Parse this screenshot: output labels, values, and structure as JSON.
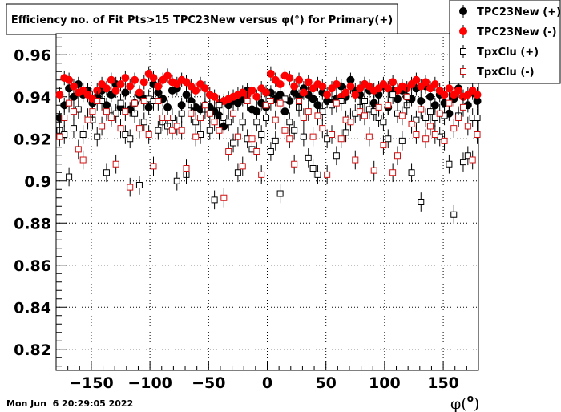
{
  "chart_data": {
    "type": "scatter",
    "title": "Efficiency no. of Fit Pts>15 TPC23New versus φ(°) for Primary(+)",
    "xlabel": "φ(°)",
    "xlabel_base": "φ(",
    "xlabel_sup": "o",
    "xlabel_end": ")",
    "ylabel": "",
    "xlim": [
      -180,
      180
    ],
    "ylim": [
      0.81,
      0.97
    ],
    "x_ticks": [
      -150,
      -100,
      -50,
      0,
      50,
      100,
      150
    ],
    "x_tick_labels": [
      "−150",
      "−100",
      "−50",
      "0",
      "50",
      "100",
      "150"
    ],
    "y_ticks": [
      0.82,
      0.84,
      0.86,
      0.88,
      0.9,
      0.92,
      0.94,
      0.96
    ],
    "y_tick_labels": [
      "0.82",
      "0.84",
      "0.86",
      "0.88",
      "0.9",
      "0.92",
      "0.94",
      "0.96"
    ],
    "grid": true,
    "legend_position": "top-right",
    "x": [
      -177,
      -173,
      -169,
      -165,
      -161,
      -157,
      -153,
      -149,
      -145,
      -141,
      -137,
      -133,
      -129,
      -125,
      -121,
      -117,
      -113,
      -109,
      -105,
      -101,
      -97,
      -93,
      -89,
      -85,
      -81,
      -77,
      -73,
      -69,
      -65,
      -61,
      -57,
      -53,
      -49,
      -45,
      -41,
      -37,
      -33,
      -29,
      -25,
      -21,
      -17,
      -13,
      -9,
      -5,
      -1,
      3,
      7,
      11,
      15,
      19,
      23,
      27,
      31,
      35,
      39,
      43,
      47,
      51,
      55,
      59,
      63,
      67,
      71,
      75,
      79,
      83,
      87,
      91,
      95,
      99,
      103,
      107,
      111,
      115,
      119,
      123,
      127,
      131,
      135,
      139,
      143,
      147,
      151,
      155,
      159,
      163,
      167,
      171,
      175,
      179
    ],
    "series": [
      {
        "name": "TPC23New (+)",
        "marker": "filled-circle",
        "color": "#000000",
        "values": [
          0.93,
          0.936,
          0.944,
          0.94,
          0.946,
          0.941,
          0.943,
          0.937,
          0.94,
          0.943,
          0.936,
          0.941,
          0.946,
          0.935,
          0.942,
          0.934,
          0.937,
          0.941,
          0.939,
          0.935,
          0.946,
          0.942,
          0.939,
          0.935,
          0.943,
          0.944,
          0.936,
          0.941,
          0.938,
          0.935,
          0.934,
          0.936,
          0.935,
          0.933,
          0.931,
          0.926,
          0.936,
          0.938,
          0.937,
          0.939,
          0.943,
          0.934,
          0.933,
          0.937,
          0.935,
          0.942,
          0.939,
          0.941,
          0.933,
          0.938,
          0.942,
          0.94,
          0.944,
          0.941,
          0.939,
          0.936,
          0.942,
          0.938,
          0.937,
          0.939,
          0.945,
          0.94,
          0.948,
          0.943,
          0.941,
          0.946,
          0.943,
          0.937,
          0.941,
          0.945,
          0.935,
          0.943,
          0.939,
          0.943,
          0.94,
          0.939,
          0.944,
          0.938,
          0.945,
          0.94,
          0.936,
          0.941,
          0.937,
          0.932,
          0.939,
          0.944,
          0.94,
          0.936,
          0.942,
          0.938
        ]
      },
      {
        "name": "TPC23New (-)",
        "marker": "filled-circle",
        "color": "#ff0000",
        "values": [
          0.941,
          0.949,
          0.948,
          0.945,
          0.942,
          0.943,
          0.941,
          0.939,
          0.943,
          0.946,
          0.944,
          0.948,
          0.943,
          0.946,
          0.949,
          0.945,
          0.948,
          0.942,
          0.947,
          0.951,
          0.949,
          0.945,
          0.948,
          0.95,
          0.947,
          0.946,
          0.948,
          0.947,
          0.945,
          0.943,
          0.946,
          0.944,
          0.941,
          0.94,
          0.937,
          0.938,
          0.939,
          0.94,
          0.941,
          0.942,
          0.941,
          0.943,
          0.94,
          0.944,
          0.942,
          0.951,
          0.948,
          0.946,
          0.95,
          0.949,
          0.945,
          0.948,
          0.942,
          0.947,
          0.944,
          0.946,
          0.945,
          0.941,
          0.944,
          0.946,
          0.94,
          0.942,
          0.945,
          0.941,
          0.944,
          0.946,
          0.945,
          0.943,
          0.944,
          0.946,
          0.944,
          0.947,
          0.943,
          0.945,
          0.944,
          0.946,
          0.948,
          0.945,
          0.947,
          0.944,
          0.946,
          0.943,
          0.941,
          0.944,
          0.941,
          0.943,
          0.94,
          0.941,
          0.943,
          0.941
        ]
      },
      {
        "name": "TpxClu (+)",
        "marker": "open-square",
        "color": "#000000",
        "values": [
          0.924,
          0.922,
          0.902,
          0.925,
          0.934,
          0.922,
          0.93,
          0.929,
          0.921,
          0.938,
          0.904,
          0.931,
          0.932,
          0.937,
          0.922,
          0.92,
          0.932,
          0.898,
          0.928,
          0.939,
          0.938,
          0.924,
          0.928,
          0.926,
          0.93,
          0.9,
          0.932,
          0.903,
          0.936,
          0.928,
          0.922,
          0.934,
          0.924,
          0.891,
          0.936,
          0.93,
          0.928,
          0.918,
          0.904,
          0.928,
          0.92,
          0.915,
          0.928,
          0.922,
          0.93,
          0.914,
          0.919,
          0.894,
          0.939,
          0.928,
          0.924,
          0.935,
          0.921,
          0.911,
          0.906,
          0.903,
          0.933,
          0.92,
          0.936,
          0.912,
          0.938,
          0.923,
          0.93,
          0.932,
          0.935,
          0.938,
          0.934,
          0.933,
          0.93,
          0.928,
          0.92,
          0.941,
          0.932,
          0.919,
          0.936,
          0.904,
          0.929,
          0.89,
          0.93,
          0.933,
          0.93,
          0.921,
          0.931,
          0.908,
          0.884,
          0.931,
          0.909,
          0.912,
          0.93,
          0.93
        ]
      },
      {
        "name": "TpxClu (-)",
        "marker": "open-square",
        "color": "#d01010",
        "values": [
          0.921,
          0.93,
          0.937,
          0.933,
          0.915,
          0.91,
          0.929,
          0.933,
          0.938,
          0.926,
          0.933,
          0.93,
          0.908,
          0.925,
          0.933,
          0.897,
          0.937,
          0.925,
          0.938,
          0.922,
          0.907,
          0.938,
          0.93,
          0.93,
          0.924,
          0.926,
          0.924,
          0.906,
          0.932,
          0.921,
          0.93,
          0.936,
          0.932,
          0.928,
          0.924,
          0.892,
          0.914,
          0.932,
          0.921,
          0.907,
          0.938,
          0.92,
          0.914,
          0.903,
          0.936,
          0.938,
          0.929,
          0.937,
          0.924,
          0.92,
          0.908,
          0.938,
          0.93,
          0.933,
          0.921,
          0.931,
          0.925,
          0.903,
          0.922,
          0.937,
          0.92,
          0.929,
          0.928,
          0.91,
          0.933,
          0.931,
          0.921,
          0.905,
          0.935,
          0.917,
          0.936,
          0.904,
          0.912,
          0.931,
          0.94,
          0.927,
          0.922,
          0.934,
          0.92,
          0.926,
          0.922,
          0.932,
          0.919,
          0.937,
          0.925,
          0.93,
          0.935,
          0.926,
          0.91,
          0.922
        ]
      }
    ]
  },
  "footer": {
    "timestamp": "Mon Jun  6 20:29:05 2022"
  }
}
